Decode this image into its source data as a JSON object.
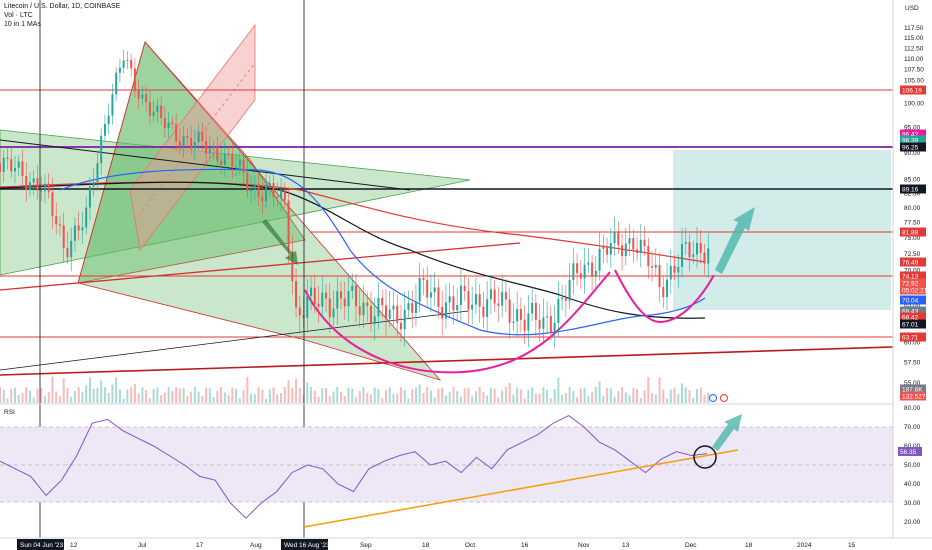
{
  "header": {
    "symbol": "Litecoin / U.S. Dollar, 1D, COINBASE",
    "volume_label": "Vol · LTC",
    "ma_label": "10 in 1 MAs",
    "currency": "USD"
  },
  "rsi_pane": {
    "title": "RSI",
    "value_tag": "56.35"
  },
  "cursor_labels": {
    "left_date": "Sun 04 Jun '23",
    "right_date": "Wed 16 Aug '23"
  },
  "colors": {
    "candle_up": "#26a69a",
    "candle_down": "#ef5350",
    "ma_black": "#131722",
    "ma_blue": "#2962ff",
    "ma_red": "#e53935",
    "cup_magenta": "#e91e9e",
    "rsi_line": "#7e57c2",
    "rsi_band": "#ede7f6",
    "trendline_orange": "#f59e0b",
    "target_box": "#b2dfdb",
    "triangle_green": "#66bb6a",
    "channel_red": "#ef9a9a"
  },
  "chart_data": [
    {
      "type": "candlestick",
      "title": "Litecoin / U.S. Dollar, 1D, COINBASE",
      "xlabel": "",
      "ylabel": "",
      "y_scale": "log",
      "ylim": [
        52.5,
        117.5
      ],
      "x_ticks": [
        "12",
        "Jul",
        "17",
        "Aug",
        "Sep",
        "18",
        "Oct",
        "16",
        "Nov",
        "13",
        "Dec",
        "18",
        "2024",
        "15"
      ],
      "y_ticks": [
        117.5,
        115.0,
        112.5,
        110.0,
        107.5,
        105.0,
        102.5,
        100.0,
        95.0,
        92.5,
        90.0,
        85.0,
        82.5,
        80.0,
        77.5,
        75.0,
        72.5,
        70.0,
        67.5,
        65.0,
        62.5,
        60.0,
        57.5,
        55.0
      ],
      "price_path": {
        "dates": [
          "2023-05-30",
          "2023-06-10",
          "2023-06-16",
          "2023-06-22",
          "2023-06-28",
          "2023-07-02",
          "2023-07-05",
          "2023-07-12",
          "2023-07-20",
          "2023-07-28",
          "2023-08-05",
          "2023-08-14",
          "2023-08-17",
          "2023-08-25",
          "2023-09-05",
          "2023-09-12",
          "2023-09-20",
          "2023-09-28",
          "2023-10-05",
          "2023-10-15",
          "2023-10-22",
          "2023-11-01",
          "2023-11-08",
          "2023-11-15",
          "2023-11-22",
          "2023-11-28",
          "2023-12-05"
        ],
        "close": [
          88,
          84,
          74,
          78,
          100,
          110,
          104,
          96,
          92,
          90,
          84,
          81,
          64,
          66,
          65,
          63,
          67,
          65,
          66,
          64,
          62,
          70,
          73,
          75,
          68,
          72,
          74
        ]
      },
      "price_labels": [
        {
          "value": "106.19",
          "color": "#e53935"
        },
        {
          "value": "96.42",
          "color": "#e91e9e"
        },
        {
          "value": "96.39",
          "color": "#26a69a"
        },
        {
          "value": "96.25",
          "color": "#131722"
        },
        {
          "value": "89.16",
          "color": "#131722"
        },
        {
          "value": "81.88",
          "color": "#e53935"
        },
        {
          "value": "76.49",
          "color": "#e53935"
        },
        {
          "value": "74.13",
          "color": "#e53935"
        },
        {
          "value": "72.92",
          "color": "#ef5350"
        },
        {
          "value": "05:02:21",
          "color": "#ef5350"
        },
        {
          "value": "70.04",
          "color": "#2962ff"
        },
        {
          "value": "68.43",
          "color": "#787b86"
        },
        {
          "value": "68.42",
          "color": "#e53935"
        },
        {
          "value": "67.01",
          "color": "#131722"
        },
        {
          "value": "63.71",
          "color": "#e53935"
        },
        {
          "value": "187.6K",
          "color": "#787b86"
        },
        {
          "value": "132.527K",
          "color": "#ef5350"
        }
      ]
    },
    {
      "type": "line",
      "title": "RSI",
      "ylim": [
        20,
        80
      ],
      "y_ticks": [
        80.0,
        70.0,
        60.0,
        50.0,
        40.0,
        30.0,
        20.0
      ],
      "band": [
        30,
        70
      ],
      "series": [
        {
          "values": [
            52,
            48,
            44,
            34,
            42,
            55,
            72,
            74,
            68,
            64,
            60,
            55,
            50,
            44,
            42,
            30,
            22,
            30,
            36,
            46,
            50,
            48,
            40,
            36,
            48,
            52,
            55,
            57,
            50,
            52,
            46,
            54,
            48,
            58,
            62,
            66,
            72,
            76,
            70,
            62,
            58,
            52,
            46,
            53,
            57,
            55,
            56
          ]
        }
      ]
    }
  ]
}
